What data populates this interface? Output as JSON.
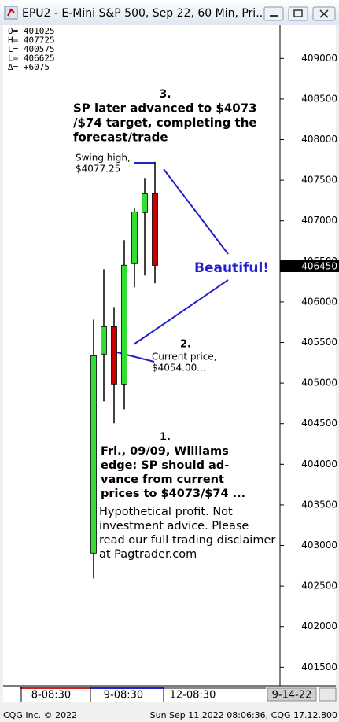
{
  "chart_data": {
    "type": "candlestick",
    "title": "EPU2 - E-Mini S&P 500, Sep 22, 60 Min, Pri...",
    "ohlc_box": [
      "O=  401025",
      "H=  407725",
      "L=  400575",
      "L=  406625",
      "Δ=    +6075"
    ],
    "categories": [
      null,
      null,
      null,
      null,
      null,
      null,
      null
    ],
    "open": [
      402905,
      405357,
      405696,
      404988,
      406471,
      407101,
      407333
    ],
    "high": [
      405783,
      406403,
      405938,
      406762,
      407149,
      407527,
      407725
    ],
    "low": [
      402595,
      404775,
      404504,
      404678,
      406180,
      406326,
      406229
    ],
    "close": [
      405337,
      405696,
      404988,
      406452,
      407110,
      407333,
      406450
    ],
    "up_color": "#33dd33",
    "down_color": "#cc0000",
    "ylim": [
      401290,
      409410
    ],
    "yticks": [
      401500,
      402000,
      402500,
      403000,
      403500,
      404000,
      404500,
      405000,
      405500,
      406000,
      406500,
      407000,
      407500,
      408000,
      408500,
      409000
    ],
    "current_price": 406450,
    "x_labels": [
      "8-08:30",
      "9-08:30",
      "12-08:30"
    ],
    "date_label": "9-14-22",
    "annotations": {
      "note3": [
        "3.",
        "SP later advanced to $4073",
        "/$74 target, completing the",
        "forecast/trade"
      ],
      "swing": [
        "Swing high,",
        "$4077.25"
      ],
      "beautiful": "Beautiful!",
      "note2": [
        "2.",
        "Current price,",
        "$4054.00..."
      ],
      "note1": [
        "1.",
        "Fri., 09/09, Williams",
        "edge: SP should ad-",
        "vance from current",
        "prices to $4073/$74 ..."
      ],
      "disclaimer": [
        "Hypothetical profit. Not",
        "investment advice. Please",
        "read our full trading disclaimer",
        "at Pagtrader.com"
      ]
    },
    "status_left": "CQG Inc. © 2022",
    "status_right": "Sun Sep 11 2022 08:06:36, CQG 17.12.800"
  }
}
